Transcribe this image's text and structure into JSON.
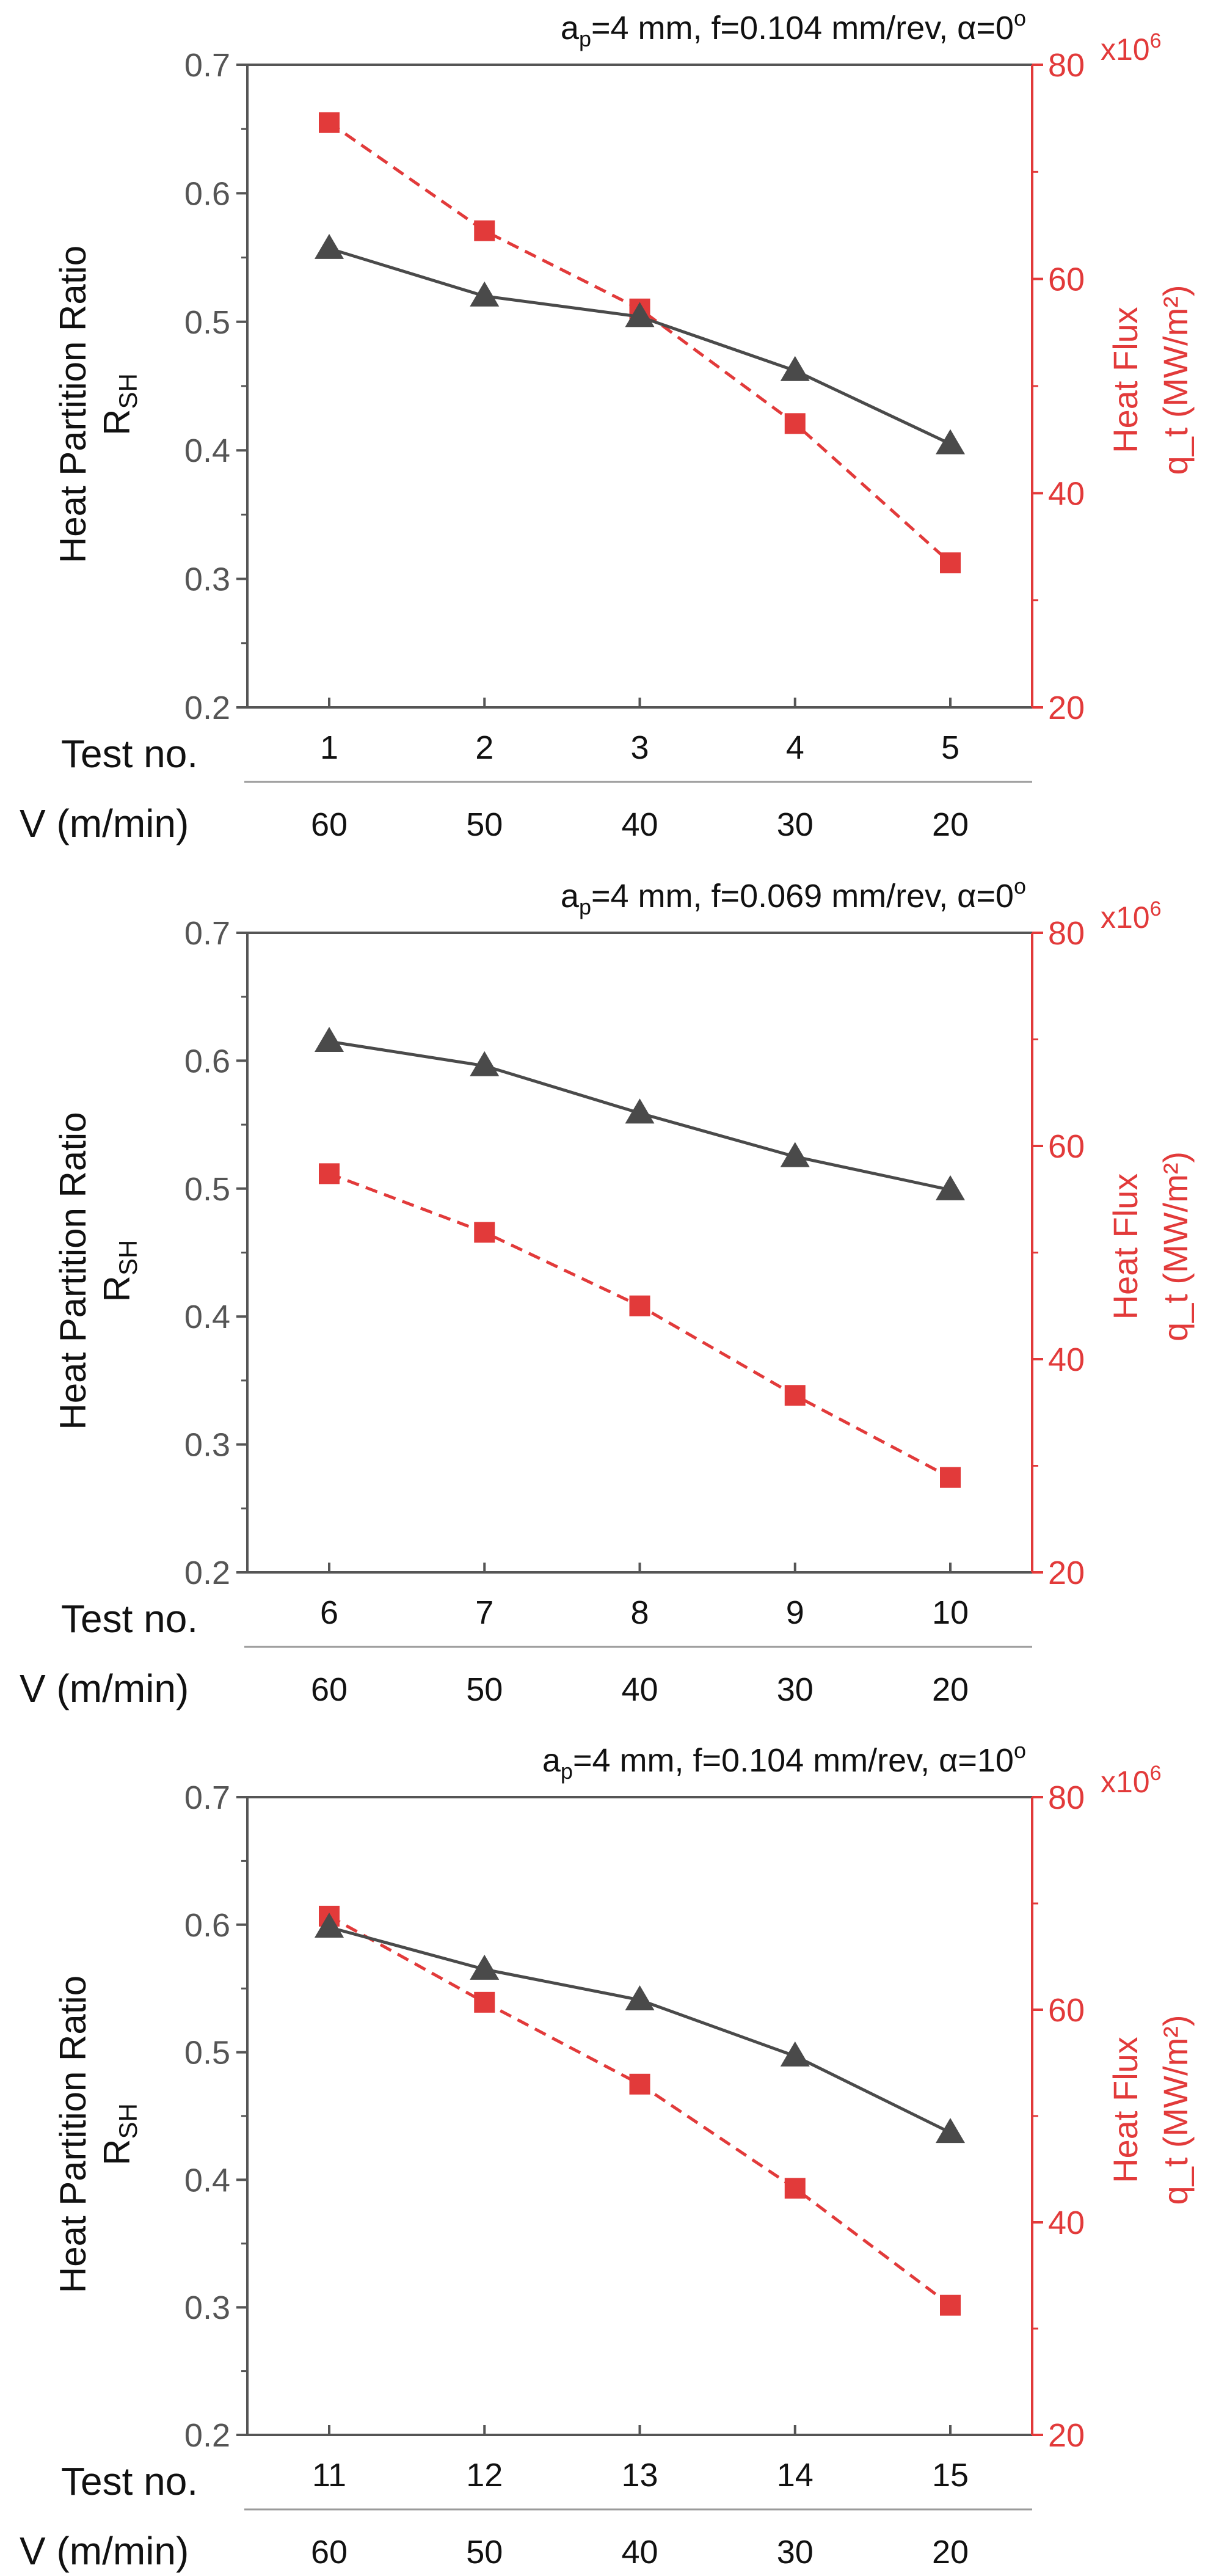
{
  "colors": {
    "left_axis": "#555555",
    "right_axis": "#E23A3A",
    "series_ratio": "#4A4A4A",
    "series_flux": "#E23A3A",
    "text": "#111111",
    "divider": "#9A9A9A"
  },
  "shared": {
    "ylabel_line1": "Heat Partition Ratio",
    "ylabel_line2_main": "R",
    "ylabel_line2_sub": "SH",
    "y2label_line1": "Heat Flux",
    "y2label_line2": "q_t (MW/m²)",
    "y2_multiplier_base": "x10",
    "y2_multiplier_exp": "6",
    "row1_label": "Test no.",
    "row2_label": "V (m/min)",
    "yticks": [
      "0.2",
      "0.3",
      "0.4",
      "0.5",
      "0.6",
      "0.7"
    ],
    "y2ticks": [
      "20",
      "40",
      "60",
      "80"
    ]
  },
  "chart_data": [
    {
      "type": "line",
      "title_parts": [
        "a",
        "p",
        "=4 mm, f=0.104 mm/rev, α=0",
        "o"
      ],
      "categories": [
        "1",
        "2",
        "3",
        "4",
        "5"
      ],
      "speeds": [
        "60",
        "50",
        "40",
        "30",
        "20"
      ],
      "ylim": [
        0.2,
        0.7
      ],
      "y2lim": [
        20,
        80
      ],
      "series": [
        {
          "name": "Heat Partition Ratio R_SH",
          "axis": "left",
          "marker": "triangle",
          "style": "solid",
          "values": [
            0.557,
            0.52,
            0.504,
            0.462,
            0.405
          ]
        },
        {
          "name": "Heat Flux q_t",
          "axis": "right",
          "marker": "square",
          "style": "dashed",
          "values": [
            74.6,
            64.5,
            57.2,
            46.5,
            33.5
          ]
        }
      ]
    },
    {
      "type": "line",
      "title_parts": [
        "a",
        "p",
        "=4 mm, f=0.069 mm/rev, α=0",
        "o"
      ],
      "categories": [
        "6",
        "7",
        "8",
        "9",
        "10"
      ],
      "speeds": [
        "60",
        "50",
        "40",
        "30",
        "20"
      ],
      "ylim": [
        0.2,
        0.7
      ],
      "y2lim": [
        20,
        80
      ],
      "series": [
        {
          "name": "Heat Partition Ratio R_SH",
          "axis": "left",
          "marker": "triangle",
          "style": "solid",
          "values": [
            0.615,
            0.596,
            0.559,
            0.525,
            0.499
          ]
        },
        {
          "name": "Heat Flux q_t",
          "axis": "right",
          "marker": "square",
          "style": "dashed",
          "values": [
            57.4,
            51.9,
            45.0,
            36.6,
            28.9
          ]
        }
      ]
    },
    {
      "type": "line",
      "title_parts": [
        "a",
        "p",
        "=4 mm, f=0.104 mm/rev, α=10",
        "o"
      ],
      "categories": [
        "11",
        "12",
        "13",
        "14",
        "15"
      ],
      "speeds": [
        "60",
        "50",
        "40",
        "30",
        "20"
      ],
      "ylim": [
        0.2,
        0.7
      ],
      "y2lim": [
        20,
        80
      ],
      "series": [
        {
          "name": "Heat Partition Ratio R_SH",
          "axis": "left",
          "marker": "triangle",
          "style": "solid",
          "values": [
            0.598,
            0.565,
            0.541,
            0.497,
            0.437
          ]
        },
        {
          "name": "Heat Flux q_t",
          "axis": "right",
          "marker": "square",
          "style": "dashed",
          "values": [
            68.8,
            60.7,
            53.0,
            43.2,
            32.2
          ]
        }
      ]
    }
  ]
}
